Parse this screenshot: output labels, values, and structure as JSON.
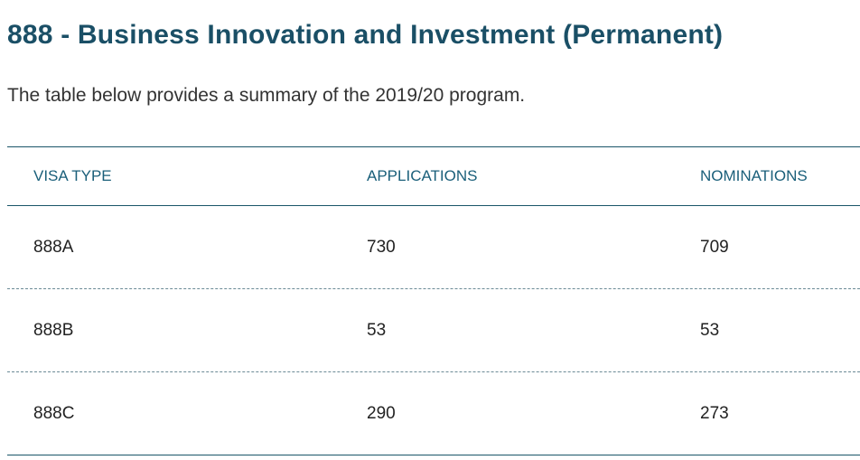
{
  "page": {
    "title": "888 - Business Innovation and Investment (Permanent)",
    "intro": "The table below provides a summary of the 2019/20 program."
  },
  "table": {
    "headers": [
      "VISA TYPE",
      "APPLICATIONS",
      "NOMINATIONS"
    ],
    "rows": [
      [
        "888A",
        "730",
        "709"
      ],
      [
        "888B",
        "53",
        "53"
      ],
      [
        "888C",
        "290",
        "273"
      ]
    ]
  },
  "colors": {
    "title": "#1a4f66",
    "header_text": "#1a5f7a",
    "rule": "#1a5569"
  }
}
